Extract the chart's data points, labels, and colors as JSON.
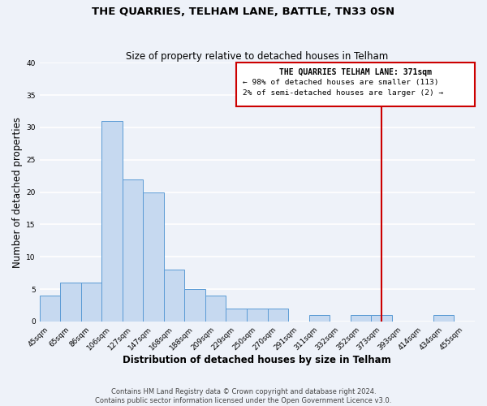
{
  "title": "THE QUARRIES, TELHAM LANE, BATTLE, TN33 0SN",
  "subtitle": "Size of property relative to detached houses in Telham",
  "xlabel": "Distribution of detached houses by size in Telham",
  "ylabel": "Number of detached properties",
  "bin_labels": [
    "45sqm",
    "65sqm",
    "86sqm",
    "106sqm",
    "127sqm",
    "147sqm",
    "168sqm",
    "188sqm",
    "209sqm",
    "229sqm",
    "250sqm",
    "270sqm",
    "291sqm",
    "311sqm",
    "332sqm",
    "352sqm",
    "373sqm",
    "393sqm",
    "414sqm",
    "434sqm",
    "455sqm"
  ],
  "bar_values": [
    4,
    6,
    6,
    31,
    22,
    20,
    8,
    5,
    4,
    2,
    2,
    2,
    0,
    1,
    0,
    1,
    1,
    0,
    0,
    1,
    0
  ],
  "bar_color": "#c6d9f0",
  "bar_edge_color": "#5b9bd5",
  "vline_x_index": 16,
  "vline_color": "#cc0000",
  "annotation_title": "THE QUARRIES TELHAM LANE: 371sqm",
  "annotation_line1": "← 98% of detached houses are smaller (113)",
  "annotation_line2": "2% of semi-detached houses are larger (2) →",
  "annotation_box_color": "#ffffff",
  "annotation_box_edge_color": "#cc0000",
  "ylim": [
    0,
    40
  ],
  "yticks": [
    0,
    5,
    10,
    15,
    20,
    25,
    30,
    35,
    40
  ],
  "footer_line1": "Contains HM Land Registry data © Crown copyright and database right 2024.",
  "footer_line2": "Contains public sector information licensed under the Open Government Licence v3.0.",
  "background_color": "#eef2f9",
  "grid_color": "#ffffff",
  "title_fontsize": 9.5,
  "subtitle_fontsize": 8.5,
  "axis_label_fontsize": 8.5,
  "tick_fontsize": 6.5,
  "footer_fontsize": 6.0,
  "ann_title_fontsize": 7.0,
  "ann_text_fontsize": 6.8
}
